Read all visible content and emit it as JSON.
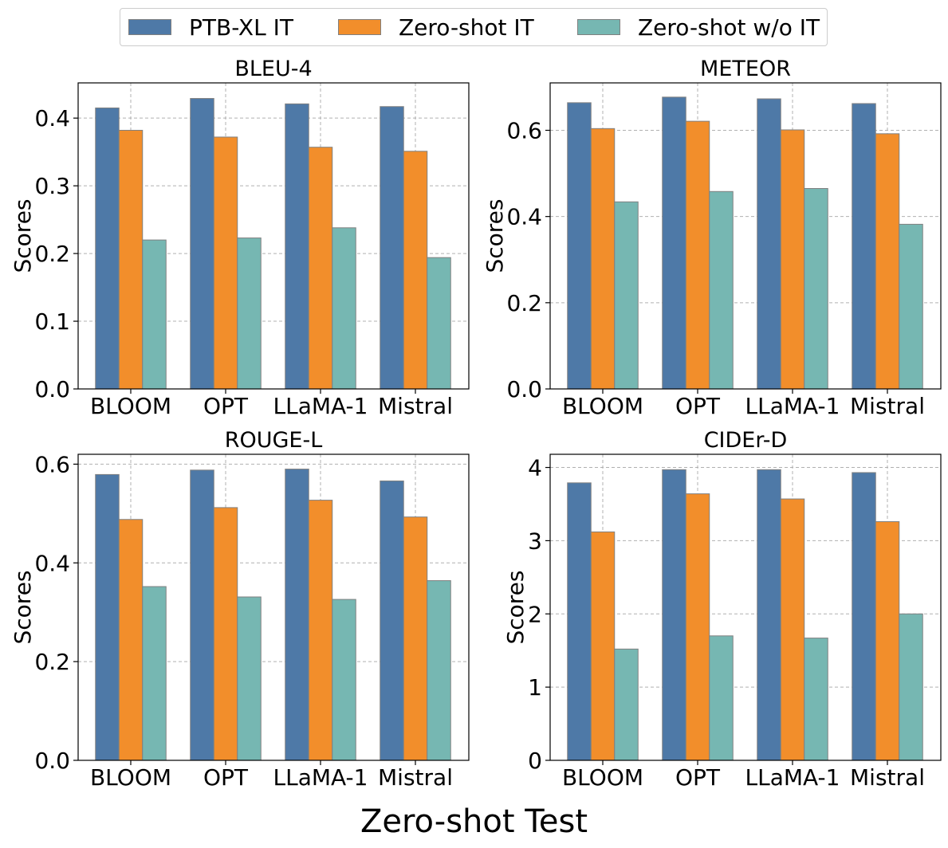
{
  "figure": {
    "suptitle": "Zero-shot Test",
    "legend": [
      "PTB-XL IT",
      "Zero-shot IT",
      "Zero-shot w/o IT"
    ],
    "colors": {
      "PTB-XL IT": "#4e79a7",
      "Zero-shot IT": "#f28e2b",
      "Zero-shot w/o IT": "#76b7b2",
      "bar_edge": "#808080",
      "grid": "#b0b0b0"
    }
  },
  "chart_data": [
    {
      "type": "bar",
      "title": "BLEU-4",
      "ylabel": "Scores",
      "categories": [
        "BLOOM",
        "OPT",
        "LLaMA-1",
        "Mistral"
      ],
      "ylim": [
        0,
        0.452
      ],
      "yticks": [
        0.0,
        0.1,
        0.2,
        0.3,
        0.4
      ],
      "ytick_labels": [
        "0.0",
        "0.1",
        "0.2",
        "0.3",
        "0.4"
      ],
      "grid": true,
      "series": [
        {
          "name": "PTB-XL IT",
          "values": [
            0.415,
            0.429,
            0.421,
            0.417
          ]
        },
        {
          "name": "Zero-shot IT",
          "values": [
            0.382,
            0.372,
            0.357,
            0.351
          ]
        },
        {
          "name": "Zero-shot w/o IT",
          "values": [
            0.22,
            0.223,
            0.238,
            0.194
          ]
        }
      ]
    },
    {
      "type": "bar",
      "title": "METEOR",
      "ylabel": "Scores",
      "categories": [
        "BLOOM",
        "OPT",
        "LLaMA-1",
        "Mistral"
      ],
      "ylim": [
        0,
        0.71
      ],
      "yticks": [
        0.0,
        0.2,
        0.4,
        0.6
      ],
      "ytick_labels": [
        "0.0",
        "0.2",
        "0.4",
        "0.6"
      ],
      "grid": true,
      "series": [
        {
          "name": "PTB-XL IT",
          "values": [
            0.664,
            0.677,
            0.673,
            0.662
          ]
        },
        {
          "name": "Zero-shot IT",
          "values": [
            0.604,
            0.621,
            0.601,
            0.592
          ]
        },
        {
          "name": "Zero-shot w/o IT",
          "values": [
            0.434,
            0.458,
            0.465,
            0.382
          ]
        }
      ]
    },
    {
      "type": "bar",
      "title": "ROUGE-L",
      "ylabel": "Scores",
      "categories": [
        "BLOOM",
        "OPT",
        "LLaMA-1",
        "Mistral"
      ],
      "ylim": [
        0,
        0.62
      ],
      "yticks": [
        0.0,
        0.2,
        0.4,
        0.6
      ],
      "ytick_labels": [
        "0.0",
        "0.2",
        "0.4",
        "0.6"
      ],
      "grid": true,
      "series": [
        {
          "name": "PTB-XL IT",
          "values": [
            0.579,
            0.588,
            0.59,
            0.566
          ]
        },
        {
          "name": "Zero-shot IT",
          "values": [
            0.488,
            0.512,
            0.527,
            0.493
          ]
        },
        {
          "name": "Zero-shot w/o IT",
          "values": [
            0.352,
            0.331,
            0.326,
            0.364
          ]
        }
      ]
    },
    {
      "type": "bar",
      "title": "CIDEr-D",
      "ylabel": "Scores",
      "categories": [
        "BLOOM",
        "OPT",
        "LLaMA-1",
        "Mistral"
      ],
      "ylim": [
        0,
        4.18
      ],
      "yticks": [
        0,
        1,
        2,
        3,
        4
      ],
      "ytick_labels": [
        "0",
        "1",
        "2",
        "3",
        "4"
      ],
      "grid": true,
      "series": [
        {
          "name": "PTB-XL IT",
          "values": [
            3.79,
            3.97,
            3.97,
            3.93
          ]
        },
        {
          "name": "Zero-shot IT",
          "values": [
            3.12,
            3.64,
            3.57,
            3.26
          ]
        },
        {
          "name": "Zero-shot w/o IT",
          "values": [
            1.52,
            1.7,
            1.67,
            2.0
          ]
        }
      ]
    }
  ]
}
